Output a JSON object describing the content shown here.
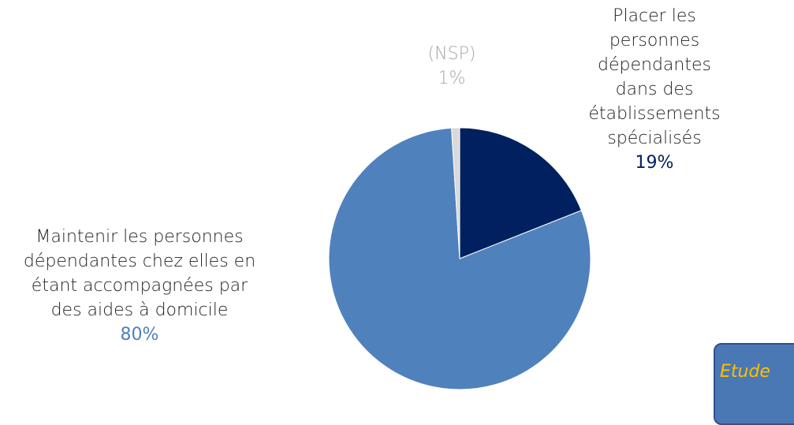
{
  "chart_data": {
    "type": "pie",
    "categories": [
      "Placer les personnes\ndépendantes dans des\nétablissements spécialisés",
      "Maintenir les personnes\ndépendantes chez elles en\nétant accompagnées par\ndes aides à domicile",
      "(NSP)"
    ],
    "values": [
      19,
      80,
      1
    ],
    "value_labels": [
      "19%",
      "80%",
      "1%"
    ],
    "colors": [
      "#002060",
      "#4f81bd",
      "#d9d9d9"
    ],
    "label_colors": [
      "#002060",
      "#4f81bd",
      "#a6a6a6"
    ]
  },
  "note_box": {
    "text": "Etude"
  }
}
